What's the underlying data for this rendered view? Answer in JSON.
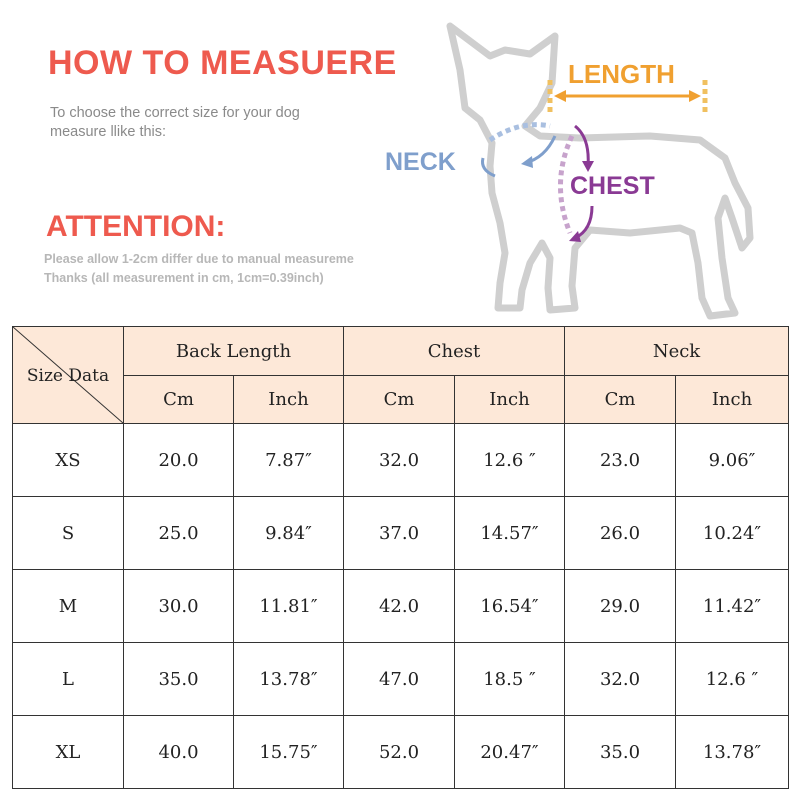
{
  "header": {
    "title": "HOW TO MEASUERE",
    "subtitle": "To choose the correct size for your dog measure llike this:",
    "attention_title": "ATTENTION:",
    "note_line1": "Please allow 1-2cm differ due to manual measureme",
    "note_line2": "Thanks (all measurement in cm, 1cm=0.39inch)"
  },
  "diagram": {
    "length_label": "LENGTH",
    "neck_label": "NECK",
    "chest_label": "CHEST",
    "colors": {
      "length": "#f0a030",
      "neck": "#7f9fcc",
      "chest": "#8a3a94",
      "outline": "#cfcfcf"
    }
  },
  "table": {
    "corner_label": "Size Data",
    "groups": [
      "Back Length",
      "Chest",
      "Neck"
    ],
    "units": [
      "Cm",
      "Inch",
      "Cm",
      "Inch",
      "Cm",
      "Inch"
    ],
    "rows": [
      {
        "size": "XS",
        "cells": [
          "20.0",
          "7.87″",
          "32.0",
          "12.6 ″",
          "23.0",
          "9.06″"
        ]
      },
      {
        "size": "S",
        "cells": [
          "25.0",
          "9.84″",
          "37.0",
          "14.57″",
          "26.0",
          "10.24″"
        ]
      },
      {
        "size": "M",
        "cells": [
          "30.0",
          "11.81″",
          "42.0",
          "16.54″",
          "29.0",
          "11.42″"
        ]
      },
      {
        "size": "L",
        "cells": [
          "35.0",
          "13.78″",
          "47.0",
          "18.5 ″",
          "32.0",
          "12.6 ″"
        ]
      },
      {
        "size": "XL",
        "cells": [
          "40.0",
          "15.75″",
          "52.0",
          "20.47″",
          "35.0",
          "13.78″"
        ]
      }
    ],
    "header_bg": "#fde8d8"
  }
}
